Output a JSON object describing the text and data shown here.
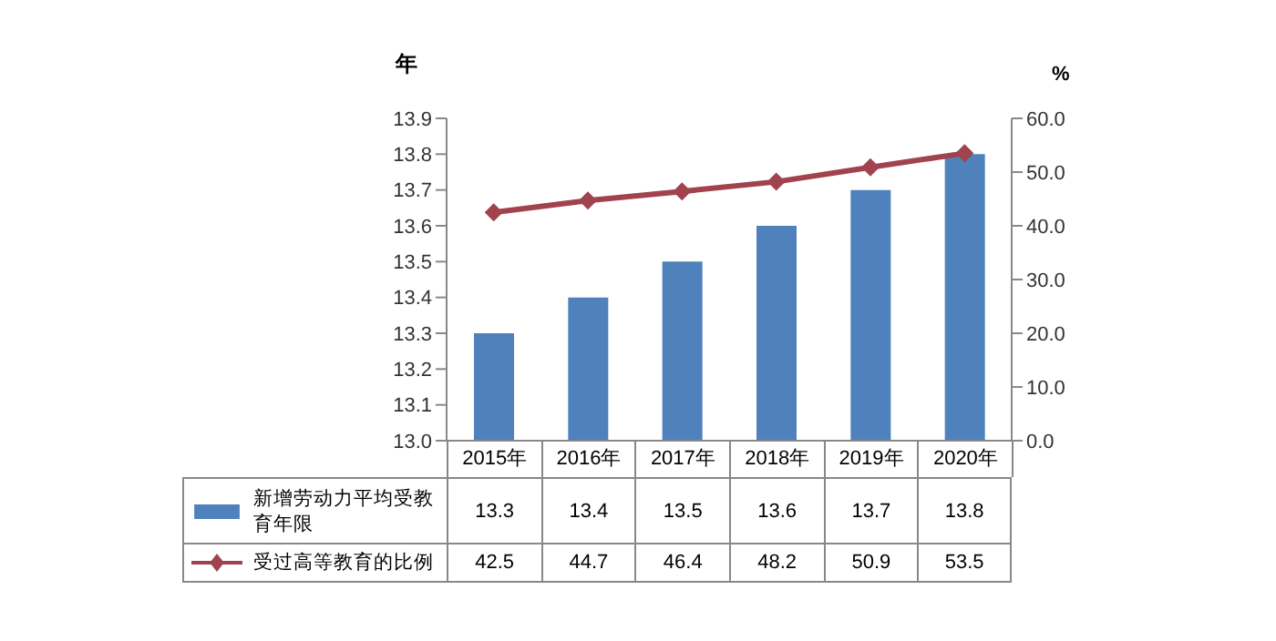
{
  "chart_data": {
    "type": "bar",
    "ylabel": "年",
    "y2label": "%",
    "categories": [
      "2015年",
      "2016年",
      "2017年",
      "2018年",
      "2019年",
      "2020年"
    ],
    "series": [
      {
        "name": "新增劳动力平均受教育年限",
        "color": "#4f81bd",
        "values": [
          13.3,
          13.4,
          13.5,
          13.6,
          13.7,
          13.8
        ]
      },
      {
        "name": "受过高等教育的比例",
        "type": "line",
        "axis": "y2",
        "color": "#a0434d",
        "marker": "diamond",
        "values": [
          42.5,
          44.7,
          46.4,
          48.2,
          50.9,
          53.5
        ]
      }
    ],
    "ylim": [
      13.0,
      13.9
    ],
    "yticks": [
      {
        "value": 13.0,
        "label": "13.0"
      },
      13.1,
      13.2,
      13.3,
      13.4,
      13.5,
      13.6,
      13.7,
      13.8,
      13.9
    ],
    "y2lim": [
      0,
      60
    ],
    "y2ticks": [
      {
        "value": 0,
        "label": "0.0"
      },
      {
        "value": 10,
        "label": "10.0"
      },
      {
        "value": 20,
        "label": "20.0"
      },
      {
        "value": 30,
        "label": "30.0"
      },
      {
        "value": 40,
        "label": "40.0"
      },
      {
        "value": 50,
        "label": "50.0"
      },
      {
        "value": 60,
        "label": "60.0"
      }
    ],
    "data_labels": true,
    "legend": "bottom",
    "grid": false
  }
}
